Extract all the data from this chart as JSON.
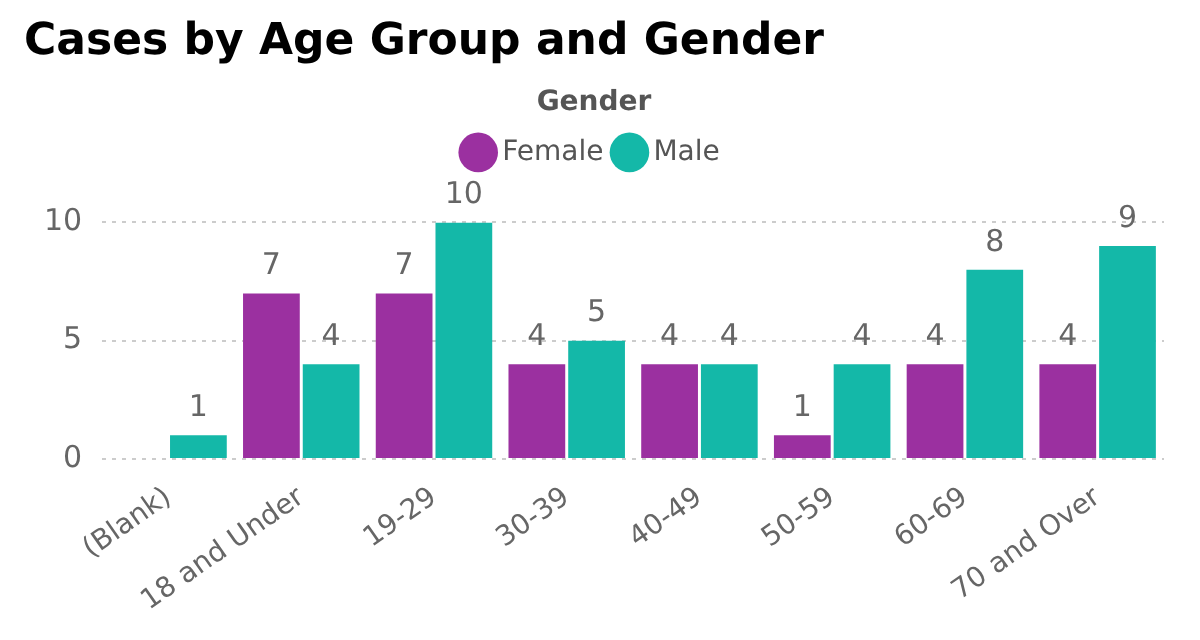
{
  "chart_data": {
    "type": "bar",
    "title": "Cases by Age Group and Gender",
    "legend_title": "Gender",
    "categories": [
      "(Blank)",
      "18 and Under",
      "19-29",
      "30-39",
      "40-49",
      "50-59",
      "60-69",
      "70 and Over"
    ],
    "series": [
      {
        "name": "Female",
        "color": "#9b30a0",
        "values": [
          null,
          7,
          7,
          4,
          4,
          1,
          4,
          4
        ]
      },
      {
        "name": "Male",
        "color": "#14b8a8",
        "values": [
          1,
          4,
          10,
          5,
          4,
          4,
          8,
          9
        ]
      }
    ],
    "ylim": [
      0,
      10
    ],
    "yticks": [
      0,
      5,
      10
    ],
    "grid": "y",
    "legend": "top",
    "data_labels": true
  }
}
